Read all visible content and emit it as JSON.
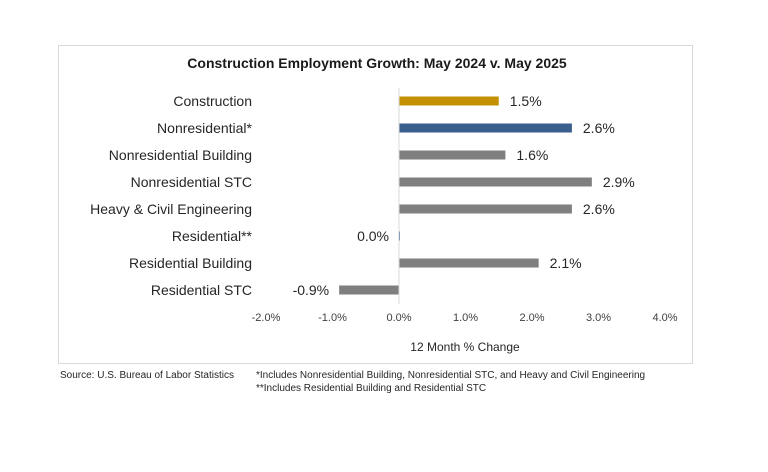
{
  "chart_data": {
    "type": "bar",
    "orientation": "horizontal",
    "title": "Construction Employment Growth: May 2024 v. May 2025",
    "xlabel": "12 Month % Change",
    "ylabel": "",
    "xlim": [
      -2.0,
      4.0
    ],
    "xticks": [
      -2.0,
      -1.0,
      0.0,
      1.0,
      2.0,
      3.0,
      4.0
    ],
    "xtick_labels": [
      "-2.0%",
      "-1.0%",
      "0.0%",
      "1.0%",
      "2.0%",
      "3.0%",
      "4.0%"
    ],
    "grid": false,
    "categories": [
      "Construction",
      "Nonresidential*",
      "Nonresidential Building",
      "Nonresidential STC",
      "Heavy & Civil Engineering",
      "Residential**",
      "Residential Building",
      "Residential STC"
    ],
    "values": [
      1.5,
      2.6,
      1.6,
      2.9,
      2.6,
      0.0,
      2.1,
      -0.9
    ],
    "data_labels": [
      "1.5%",
      "2.6%",
      "1.6%",
      "2.9%",
      "2.6%",
      "0.0%",
      "2.1%",
      "-0.9%"
    ],
    "colors": [
      "#C39100",
      "#3A5F8F",
      "#7F7F7F",
      "#7F7F7F",
      "#7F7F7F",
      "#3A5F8F",
      "#7F7F7F",
      "#7F7F7F"
    ]
  },
  "footer": {
    "source": "Source:  U.S. Bureau of Labor Statistics",
    "note1": "*Includes Nonresidential Building, Nonresidential STC, and Heavy and Civil Engineering",
    "note2": "**Includes Residential Building and Residential STC"
  }
}
